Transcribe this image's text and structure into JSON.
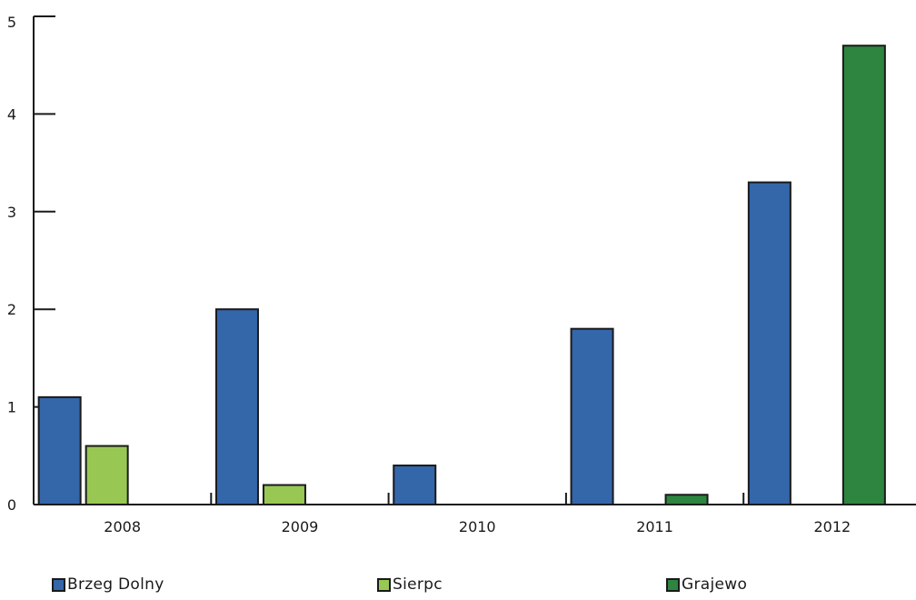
{
  "chart_data": {
    "type": "bar",
    "categories": [
      "2008",
      "2009",
      "2010",
      "2011",
      "2012"
    ],
    "series": [
      {
        "name": "Brzeg Dolny",
        "values": [
          1.1,
          2.0,
          0.4,
          1.8,
          3.3
        ]
      },
      {
        "name": "Sierpc",
        "values": [
          0.6,
          0.2,
          0,
          0,
          0
        ]
      },
      {
        "name": "Grajewo",
        "values": [
          0,
          0,
          0,
          0.1,
          4.7
        ]
      }
    ],
    "colors": {
      "Brzeg Dolny": "#3466aa",
      "Sierpc": "#98c853",
      "Grajewo": "#2d8540"
    },
    "title": "",
    "xlabel": "",
    "ylabel": "",
    "ylim": [
      0,
      5
    ],
    "yticks": [
      0,
      1,
      2,
      3,
      4,
      5
    ],
    "grid": false,
    "legend_position": "bottom"
  }
}
